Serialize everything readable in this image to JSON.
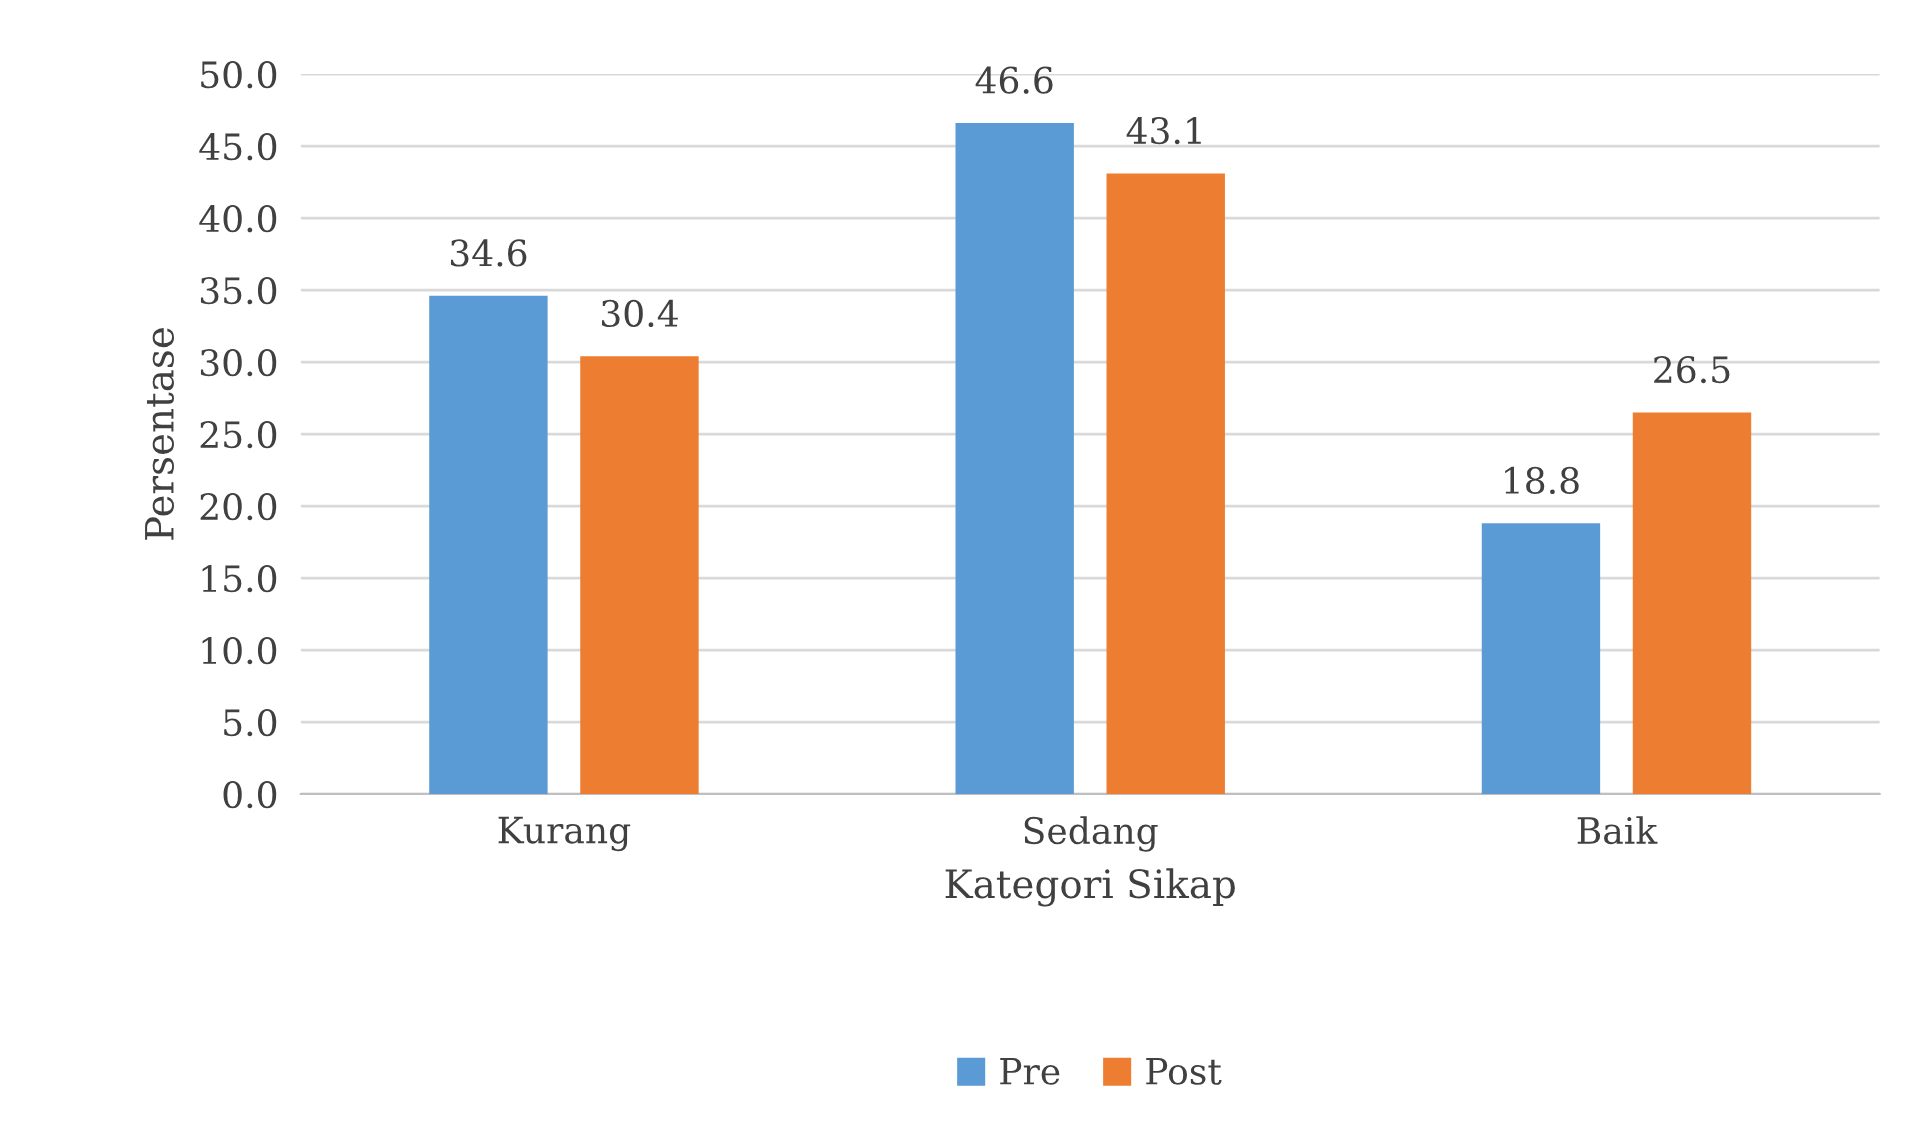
{
  "chart_data": {
    "type": "bar",
    "xlabel": "Kategori Sikap",
    "ylabel": "Persentase",
    "categories": [
      "Kurang",
      "Sedang",
      "Baik"
    ],
    "series": [
      {
        "name": "Pre",
        "color": "#5b9bd5",
        "values": [
          34.6,
          46.6,
          18.8
        ]
      },
      {
        "name": "Post",
        "color": "#ed7d31",
        "values": [
          30.4,
          43.1,
          26.5
        ]
      }
    ],
    "ylim": [
      0,
      50
    ],
    "yticks": [
      {
        "value": 0,
        "label": "0.0"
      },
      {
        "value": 5,
        "label": "5.0"
      },
      {
        "value": 10,
        "label": "10.0"
      },
      {
        "value": 15,
        "label": "15.0"
      },
      {
        "value": 20,
        "label": "20.0"
      },
      {
        "value": 25,
        "label": "25.0"
      },
      {
        "value": 30,
        "label": "30.0"
      },
      {
        "value": 35,
        "label": "35.0"
      },
      {
        "value": 40,
        "label": "40.0"
      },
      {
        "value": 45,
        "label": "45.0"
      },
      {
        "value": 50,
        "label": "50.0"
      }
    ],
    "grid": "y",
    "legend": "bottom",
    "data_labels": true
  }
}
